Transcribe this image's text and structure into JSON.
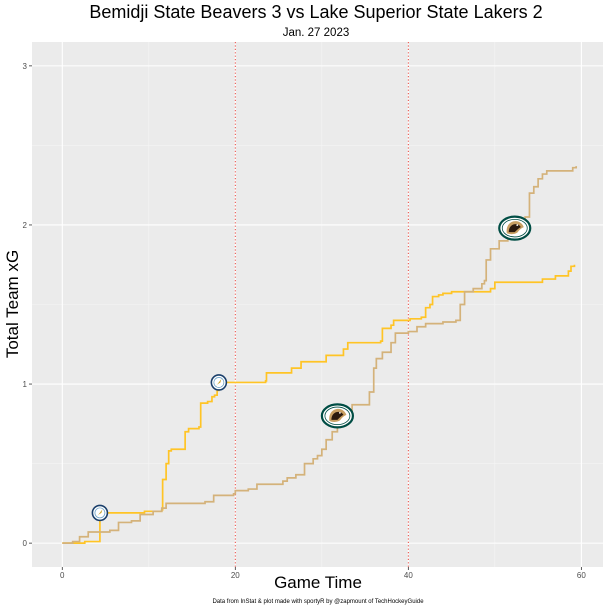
{
  "chart_data": {
    "type": "line",
    "title": "Bemidji State Beavers 3 vs Lake Superior State Lakers 2",
    "subtitle": "Jan. 27 2023",
    "xlabel": "Game Time",
    "ylabel": "Total Team xG",
    "caption": "Data from InStat & plot made with sportyR by @zapmount of TechHockeyGuide",
    "xlim": [
      -3.5,
      62.5
    ],
    "ylim": [
      -0.15,
      3.15
    ],
    "x_ticks": [
      0,
      20,
      40,
      60
    ],
    "y_ticks": [
      0,
      1,
      2,
      3
    ],
    "grid": true,
    "legend": "none",
    "period_lines": [
      20,
      40
    ],
    "colors": {
      "panel": "#ebebeb",
      "grid_major": "#ffffff",
      "grid_minor": "#f5f5f5",
      "period_line": "#e8473f",
      "lakers": "#ffc425",
      "beavers": "#d4b27a"
    },
    "series": [
      {
        "key": "lakers",
        "color": "#ffc425",
        "points": [
          [
            0,
            0
          ],
          [
            2.6,
            0.01
          ],
          [
            4.3,
            0.01
          ],
          [
            4.35,
            0.19
          ],
          [
            8.0,
            0.19
          ],
          [
            9.5,
            0.2
          ],
          [
            11.5,
            0.21
          ],
          [
            11.6,
            0.4
          ],
          [
            12.0,
            0.5
          ],
          [
            12.3,
            0.58
          ],
          [
            12.6,
            0.59
          ],
          [
            14.0,
            0.59
          ],
          [
            14.2,
            0.7
          ],
          [
            14.6,
            0.72
          ],
          [
            15.8,
            0.73
          ],
          [
            16.0,
            0.88
          ],
          [
            16.8,
            0.89
          ],
          [
            17.3,
            0.92
          ],
          [
            17.6,
            0.93
          ],
          [
            17.9,
            0.96
          ],
          [
            18.1,
            1.0
          ],
          [
            18.4,
            1.01
          ],
          [
            23.5,
            1.02
          ],
          [
            23.6,
            1.07
          ],
          [
            26.5,
            1.1
          ],
          [
            27.5,
            1.1
          ],
          [
            27.6,
            1.14
          ],
          [
            30.5,
            1.18
          ],
          [
            32.5,
            1.22
          ],
          [
            33.0,
            1.26
          ],
          [
            36.8,
            1.27
          ],
          [
            37.0,
            1.35
          ],
          [
            38.0,
            1.37
          ],
          [
            38.3,
            1.4
          ],
          [
            40.0,
            1.4
          ],
          [
            40.2,
            1.41
          ],
          [
            41.5,
            1.42
          ],
          [
            42.0,
            1.48
          ],
          [
            42.5,
            1.5
          ],
          [
            42.8,
            1.55
          ],
          [
            43.5,
            1.56
          ],
          [
            44.0,
            1.57
          ],
          [
            45.0,
            1.58
          ],
          [
            49.5,
            1.6
          ],
          [
            50.0,
            1.64
          ],
          [
            55.5,
            1.66
          ],
          [
            57.0,
            1.68
          ],
          [
            58.5,
            1.71
          ],
          [
            58.8,
            1.74
          ],
          [
            59.2,
            1.75
          ]
        ],
        "markers": [
          {
            "x": 4.35,
            "y": 0.19,
            "icon": "lakers-logo-icon"
          },
          {
            "x": 18.1,
            "y": 1.01,
            "icon": "lakers-logo-icon"
          }
        ]
      },
      {
        "key": "beavers",
        "color": "#d4b27a",
        "points": [
          [
            0,
            0
          ],
          [
            1.2,
            0.01
          ],
          [
            2.0,
            0.04
          ],
          [
            3.0,
            0.07
          ],
          [
            5.5,
            0.08
          ],
          [
            6.5,
            0.13
          ],
          [
            8.0,
            0.14
          ],
          [
            9.0,
            0.18
          ],
          [
            10.5,
            0.2
          ],
          [
            11.5,
            0.22
          ],
          [
            12.0,
            0.25
          ],
          [
            16.5,
            0.26
          ],
          [
            17.5,
            0.3
          ],
          [
            19.8,
            0.31
          ],
          [
            20.0,
            0.33
          ],
          [
            21.5,
            0.34
          ],
          [
            22.5,
            0.37
          ],
          [
            25.5,
            0.39
          ],
          [
            26.0,
            0.41
          ],
          [
            27.0,
            0.43
          ],
          [
            28.0,
            0.5
          ],
          [
            29.0,
            0.53
          ],
          [
            29.5,
            0.55
          ],
          [
            30.0,
            0.59
          ],
          [
            30.5,
            0.65
          ],
          [
            31.2,
            0.7
          ],
          [
            31.8,
            0.78
          ],
          [
            32.5,
            0.8
          ],
          [
            33.5,
            0.87
          ],
          [
            35.5,
            0.95
          ],
          [
            36.0,
            1.1
          ],
          [
            36.3,
            1.16
          ],
          [
            37.0,
            1.2
          ],
          [
            38.0,
            1.26
          ],
          [
            38.5,
            1.32
          ],
          [
            40.0,
            1.33
          ],
          [
            41.0,
            1.36
          ],
          [
            42.0,
            1.38
          ],
          [
            44.0,
            1.39
          ],
          [
            45.5,
            1.4
          ],
          [
            46.0,
            1.5
          ],
          [
            46.5,
            1.58
          ],
          [
            47.5,
            1.6
          ],
          [
            48.5,
            1.63
          ],
          [
            48.8,
            1.65
          ],
          [
            49.0,
            1.78
          ],
          [
            49.5,
            1.85
          ],
          [
            50.5,
            1.9
          ],
          [
            51.5,
            1.92
          ],
          [
            52.3,
            1.96
          ],
          [
            52.8,
            1.98
          ],
          [
            53.5,
            2.05
          ],
          [
            54.0,
            2.2
          ],
          [
            54.5,
            2.24
          ],
          [
            55.0,
            2.29
          ],
          [
            55.5,
            2.32
          ],
          [
            56.0,
            2.34
          ],
          [
            59.0,
            2.36
          ],
          [
            59.4,
            2.37
          ]
        ],
        "markers": [
          {
            "x": 31.8,
            "y": 0.8,
            "icon": "beaver-logo-icon"
          },
          {
            "x": 52.3,
            "y": 1.98,
            "icon": "beaver-logo-icon"
          }
        ]
      }
    ]
  }
}
